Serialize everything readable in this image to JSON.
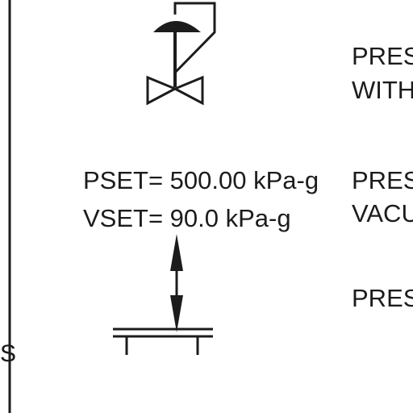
{
  "diagram": {
    "left_symbol": {
      "pset": "PSET= 500.00 kPa-g",
      "vset": "VSET= 90.0 kPa-g",
      "edge_mark": "S"
    },
    "right_notes": [
      {
        "line1": "PRES",
        "line2": "WITH"
      },
      {
        "line1": "PRES",
        "line2": "VACU"
      },
      {
        "line1": "PRES",
        "line2": ""
      }
    ],
    "colors": {
      "ink": "#1c1c1c",
      "background": "#ffffff"
    },
    "icons": [
      "control-valve-icon",
      "pressure-vacuum-relief-icon",
      "tank-nozzle-icon",
      "double-arrow-icon"
    ]
  }
}
